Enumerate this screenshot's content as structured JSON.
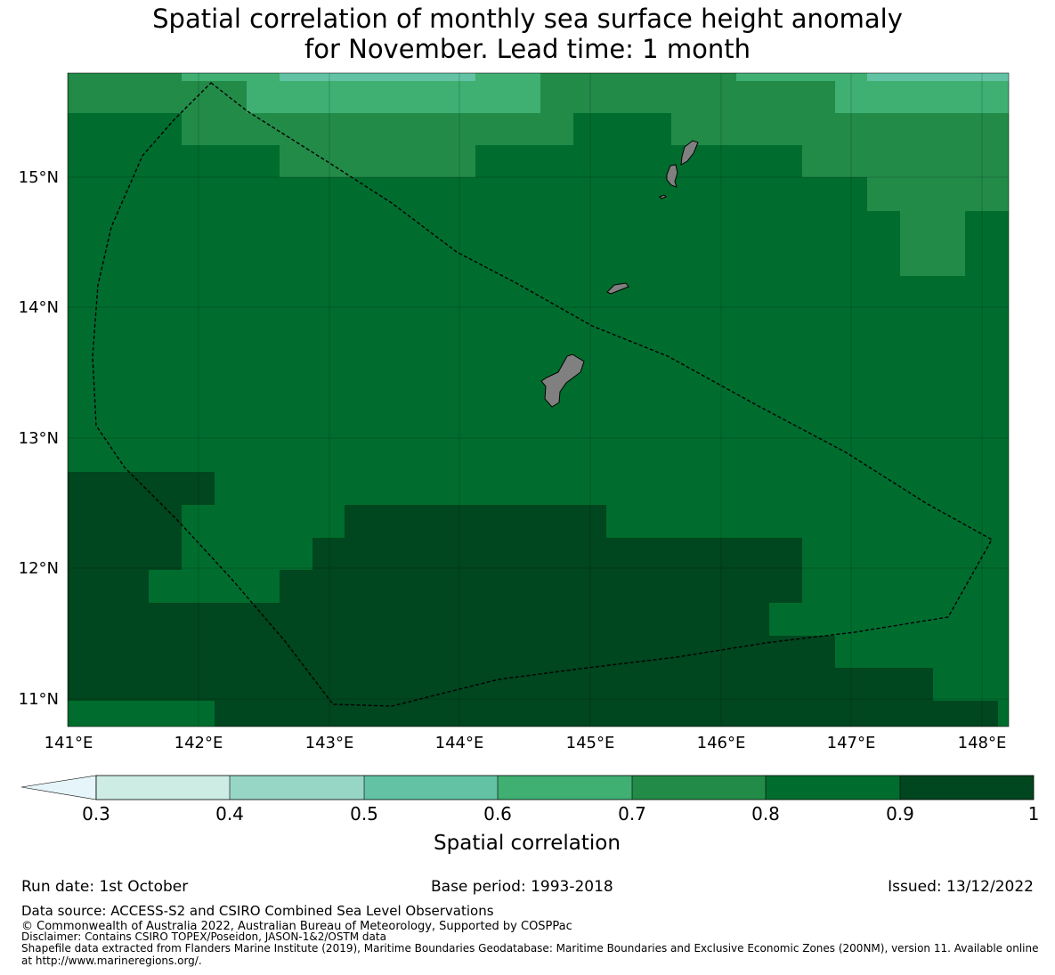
{
  "title_line1": "Spatial correlation of monthly sea surface height anomaly",
  "title_line2": "for November. Lead time: 1 month",
  "colors": {
    "band_0.3_0.4": "#cdece4",
    "band_0.4_0.5": "#97d6c5",
    "band_0.5_0.6": "#62c2a3",
    "band_0.6_0.7": "#3faf72",
    "band_0.7_0.8": "#228b48",
    "band_0.8_0.9": "#006d2e",
    "band_0.9_1.0": "#00461e",
    "below_0.3": "#e5f5f9",
    "land": "#808080"
  },
  "map": {
    "lon_ticks": [
      "141°E",
      "142°E",
      "143°E",
      "144°E",
      "145°E",
      "146°E",
      "147°E",
      "148°E"
    ],
    "lat_ticks": [
      "11°N",
      "12°N",
      "13°N",
      "14°N",
      "15°N"
    ],
    "lon_range": [
      140.98,
      148.2
    ],
    "lat_range": [
      10.8,
      15.8
    ]
  },
  "colorbar": {
    "label": "Spatial correlation",
    "ticks": [
      "0.3",
      "0.4",
      "0.5",
      "0.6",
      "0.7",
      "0.8",
      "0.9",
      "1"
    ]
  },
  "footer": {
    "run_date": "Run date: 1st October",
    "base_period": "Base period: 1993-2018",
    "issued": "Issued: 13/12/2022",
    "data_source": "Data source: ACCESS-S2 and CSIRO Combined Sea Level Observations",
    "copyright": "© Commonwealth of Australia 2022, Australian Bureau of Meteorology, Supported by COSPPac",
    "disclaimer": "Disclaimer: Contains CSIRO TOPEX/Poseidon, JASON-1&2/OSTM data",
    "shapefile_1": "Shapefile data extracted from Flanders Marine Institute (2019), Maritime Boundaries Geodatabase: Maritime Boundaries and Exclusive Economic Zones (200NM), version 11. Available online",
    "shapefile_2": "at http://www.marineregions.org/."
  }
}
